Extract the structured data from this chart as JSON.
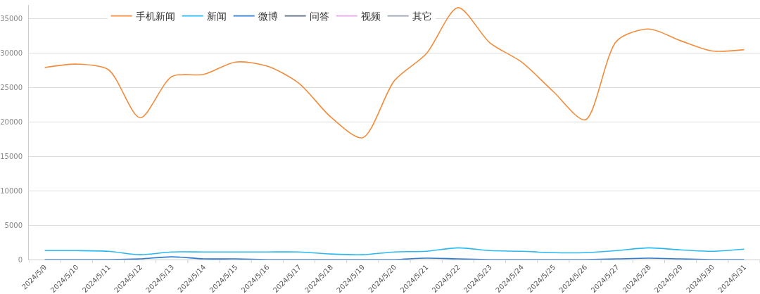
{
  "chart_data": {
    "type": "line",
    "categories": [
      "2024/5/9",
      "2024/5/10",
      "2024/5/11",
      "2024/5/12",
      "2024/5/13",
      "2024/5/14",
      "2024/5/15",
      "2024/5/16",
      "2024/5/17",
      "2024/5/18",
      "2024/5/19",
      "2024/5/20",
      "2024/5/21",
      "2024/5/22",
      "2024/5/23",
      "2024/5/24",
      "2024/5/25",
      "2024/5/26",
      "2024/5/27",
      "2024/5/28",
      "2024/5/29",
      "2024/5/30",
      "2024/5/31"
    ],
    "series": [
      {
        "name": "手机新闻",
        "color": "#f28c3c",
        "values": [
          27900,
          28400,
          27600,
          20600,
          26600,
          26900,
          28700,
          28100,
          25600,
          20700,
          17700,
          26000,
          29900,
          36600,
          31500,
          28700,
          24400,
          20300,
          31800,
          33500,
          31800,
          30300,
          30500
        ]
      },
      {
        "name": "新闻",
        "color": "#29b8f0",
        "values": [
          1300,
          1300,
          1200,
          700,
          1100,
          1100,
          1100,
          1100,
          1100,
          800,
          700,
          1100,
          1200,
          1700,
          1300,
          1200,
          1000,
          1000,
          1300,
          1700,
          1400,
          1200,
          1500
        ]
      },
      {
        "name": "微博",
        "color": "#2e7bcf",
        "values": [
          0,
          0,
          0,
          100,
          400,
          100,
          100,
          0,
          0,
          0,
          0,
          0,
          200,
          100,
          0,
          0,
          0,
          0,
          100,
          200,
          100,
          0,
          0
        ]
      },
      {
        "name": "问答",
        "color": "#5b6b7b",
        "values": [
          null,
          null,
          null,
          null,
          null,
          null,
          null,
          null,
          null,
          null,
          null,
          null,
          null,
          null,
          null,
          null,
          null,
          null,
          null,
          null,
          null,
          null,
          null
        ]
      },
      {
        "name": "视频",
        "color": "#e4a8e8",
        "values": [
          null,
          null,
          null,
          null,
          null,
          null,
          null,
          null,
          null,
          null,
          null,
          null,
          null,
          null,
          null,
          null,
          null,
          null,
          null,
          null,
          null,
          null,
          null
        ]
      },
      {
        "name": "其它",
        "color": "#9aa0ab",
        "values": [
          null,
          null,
          null,
          null,
          null,
          null,
          null,
          null,
          null,
          null,
          null,
          null,
          null,
          null,
          null,
          null,
          null,
          null,
          null,
          null,
          null,
          null,
          null
        ]
      }
    ],
    "ylim": [
      0,
      37000
    ],
    "yticks": [
      0,
      5000,
      10000,
      15000,
      20000,
      25000,
      30000,
      35000
    ],
    "grid": "y",
    "legend": "top"
  }
}
